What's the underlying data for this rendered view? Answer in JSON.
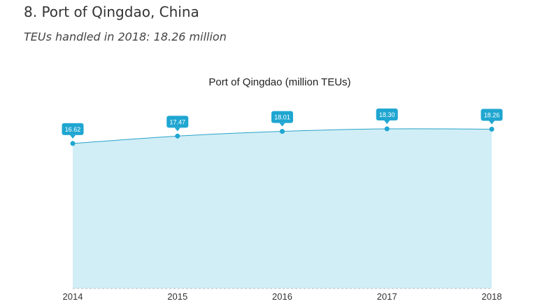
{
  "page": {
    "heading": "8. Port of Qingdao, China",
    "subheading": "TEUs handled in 2018: 18.26 million"
  },
  "chart_data": {
    "type": "area",
    "title": "Port of Qingdao (million TEUs)",
    "xlabel": "",
    "ylabel": "",
    "categories": [
      "2014",
      "2015",
      "2016",
      "2017",
      "2018"
    ],
    "values": [
      16.62,
      17.47,
      18.01,
      18.3,
      18.26
    ],
    "data_labels": [
      "16.62",
      "17.47",
      "18.01",
      "18.30",
      "18.26"
    ],
    "ylim": [
      0,
      20
    ],
    "grid": false,
    "legend": "none",
    "colors": {
      "line": "#2aa3c8",
      "fill": "#d1eef6",
      "marker": "#1fa6d1",
      "label_bg": "#1fa6d1",
      "label_text": "#ffffff",
      "baseline": "#bbbbbb"
    }
  }
}
